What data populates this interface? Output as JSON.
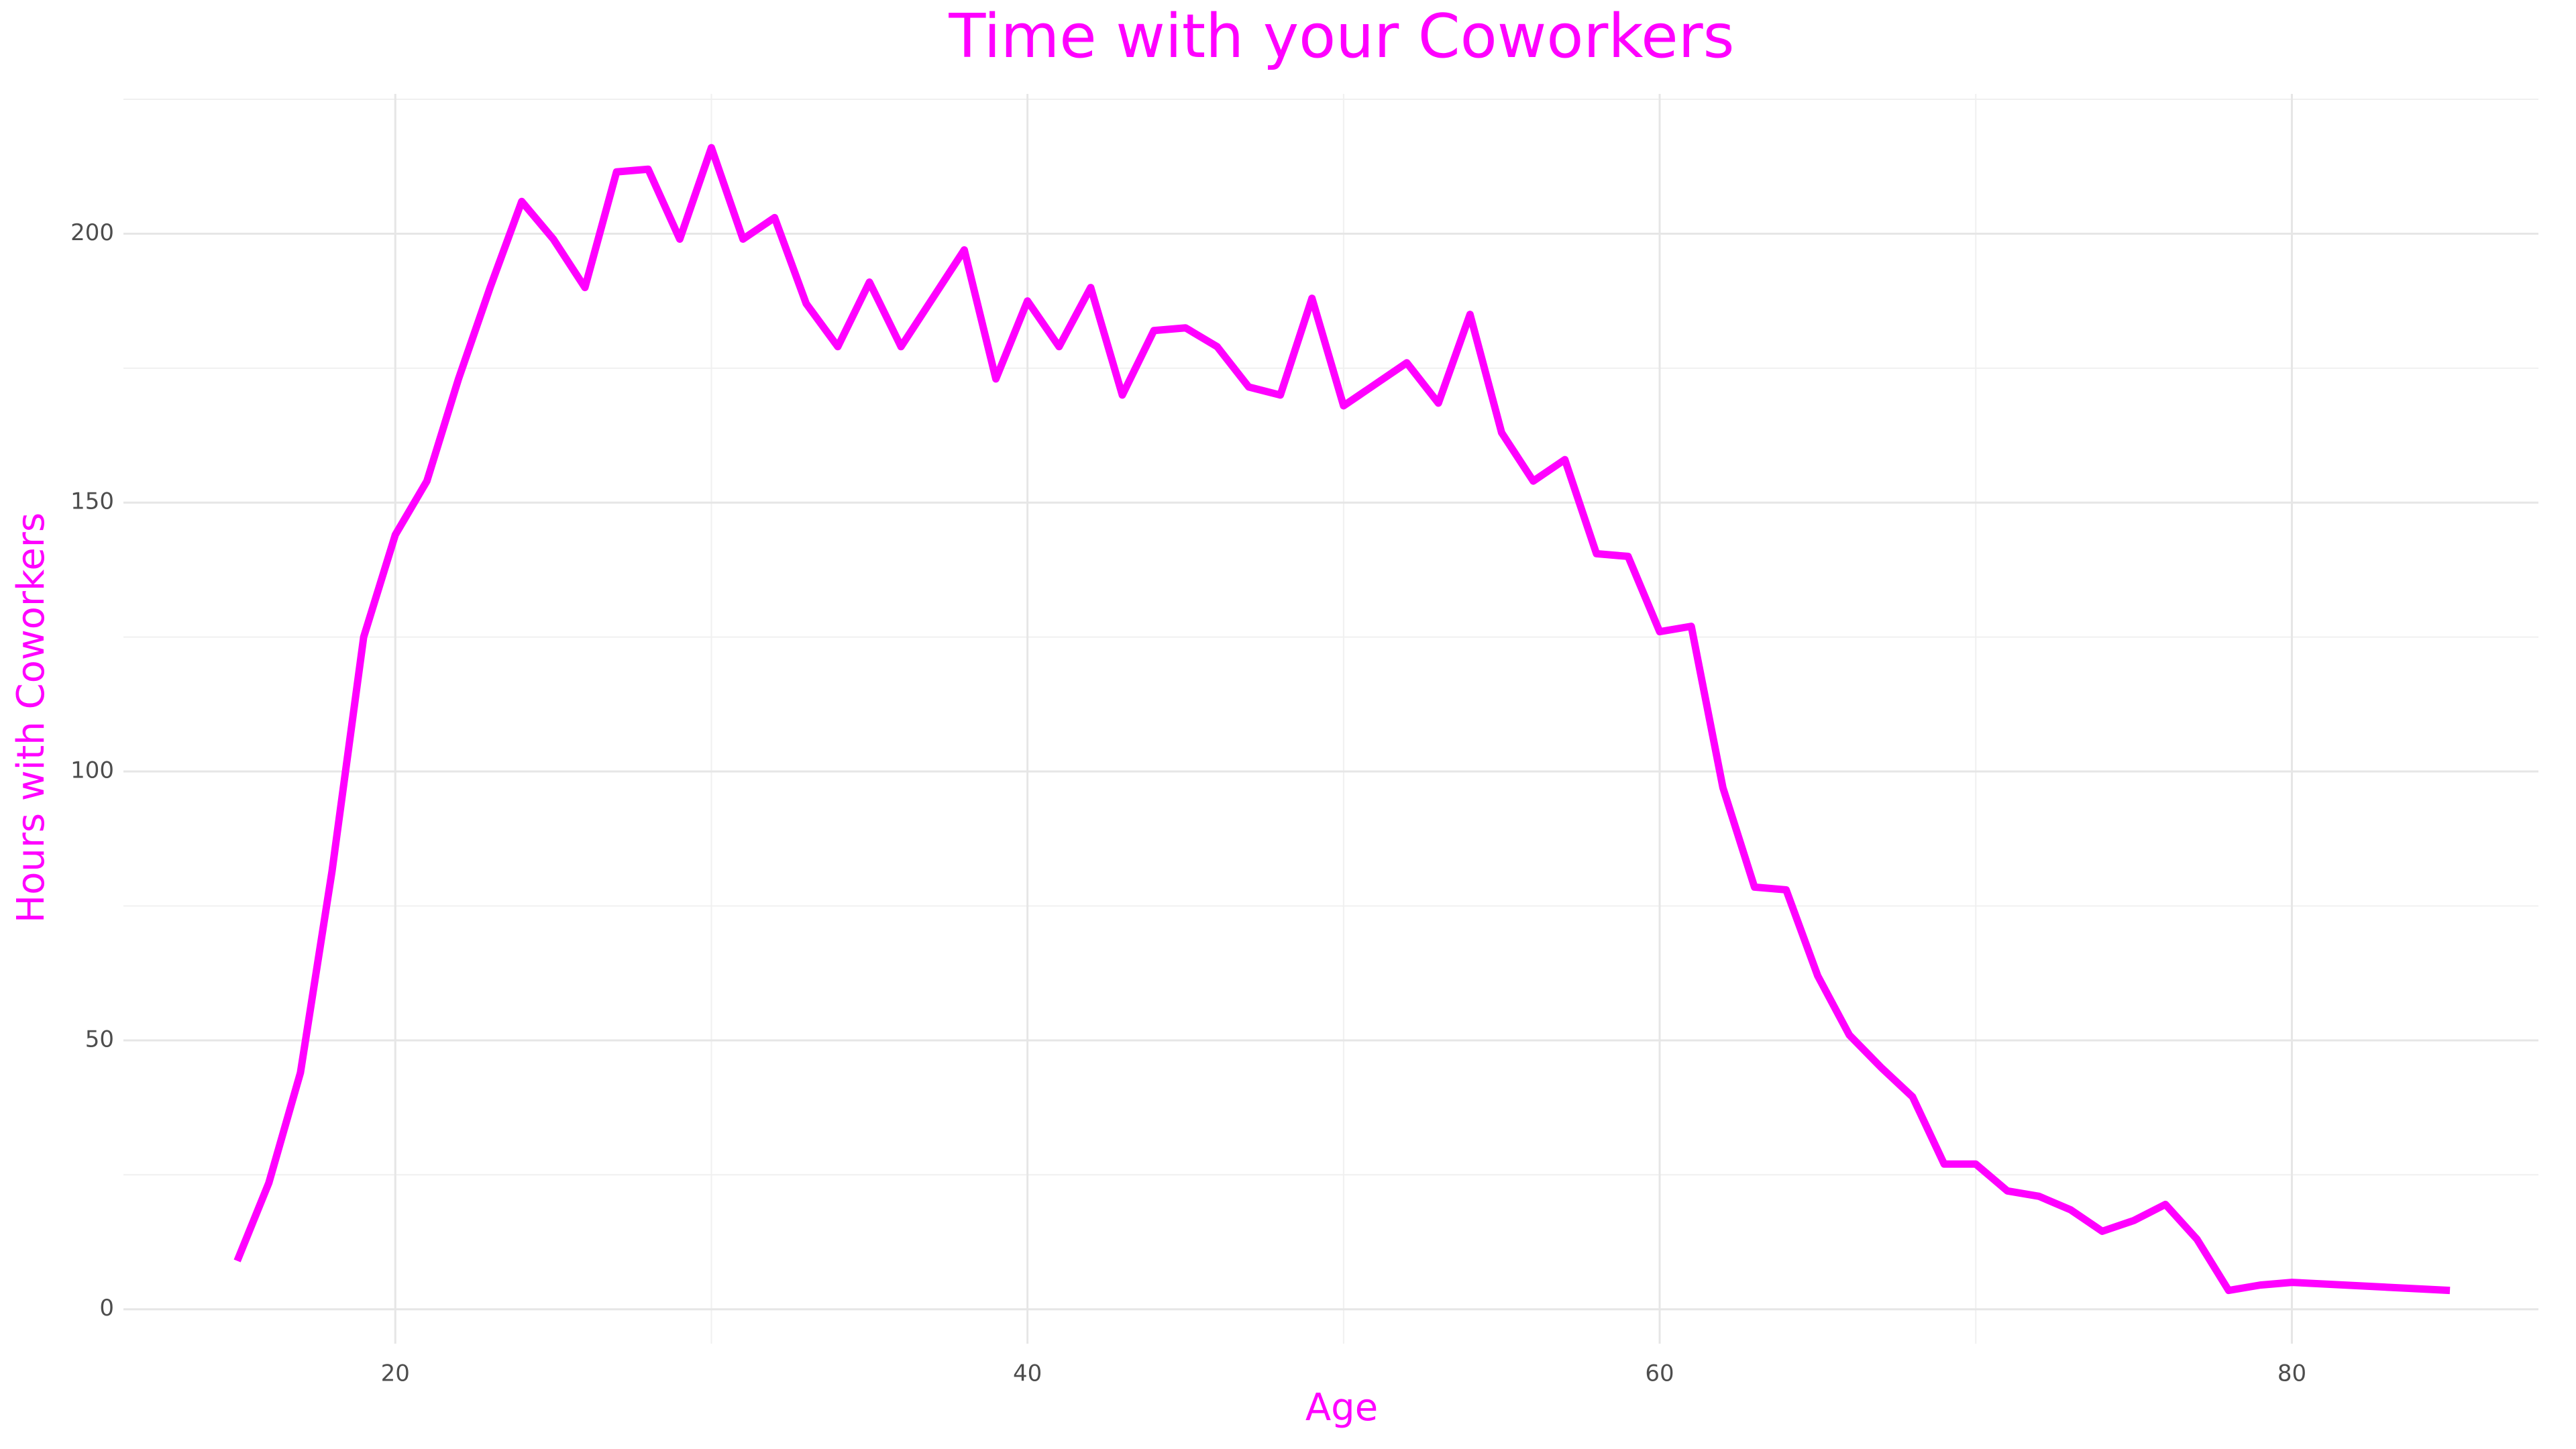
{
  "chart_data": {
    "type": "line",
    "title": "Time with your Coworkers",
    "x_label": "Age",
    "y_label": "Hours with Coworkers",
    "x": [
      15,
      16,
      17,
      18,
      19,
      20,
      21,
      22,
      23,
      24,
      25,
      26,
      27,
      28,
      29,
      30,
      31,
      32,
      33,
      34,
      35,
      36,
      37,
      38,
      39,
      40,
      41,
      42,
      43,
      44,
      45,
      46,
      47,
      48,
      49,
      50,
      51,
      52,
      53,
      54,
      55,
      56,
      57,
      58,
      59,
      60,
      61,
      62,
      63,
      64,
      65,
      66,
      67,
      68,
      69,
      70,
      71,
      72,
      73,
      74,
      75,
      76,
      77,
      78,
      79,
      80,
      85
    ],
    "series": [
      {
        "name": "Hours with Coworkers",
        "color": "#ff00ff",
        "values": [
          9,
          23.5,
          44,
          81.5,
          125,
          144,
          154,
          173,
          190,
          206,
          199,
          190,
          211.5,
          212,
          199,
          216,
          199,
          203,
          187,
          179,
          191,
          179,
          188,
          197,
          173,
          187.5,
          179,
          190,
          170,
          182,
          182.5,
          179,
          171.5,
          170,
          188,
          168,
          172,
          176,
          168.5,
          185,
          163,
          154,
          158,
          140.5,
          140,
          126,
          127,
          97,
          78.5,
          78,
          62,
          51,
          45,
          39.5,
          27,
          27,
          22,
          21,
          18.5,
          14.5,
          16.5,
          19.5,
          13,
          3.5,
          4.5,
          5,
          3.5
        ]
      }
    ],
    "xlim": [
      11.4,
      87.8
    ],
    "ylim": [
      -6.4,
      226
    ],
    "xticks": [
      20,
      40,
      60,
      80
    ],
    "yticks": [
      0,
      50,
      100,
      150,
      200
    ],
    "grid": true
  }
}
